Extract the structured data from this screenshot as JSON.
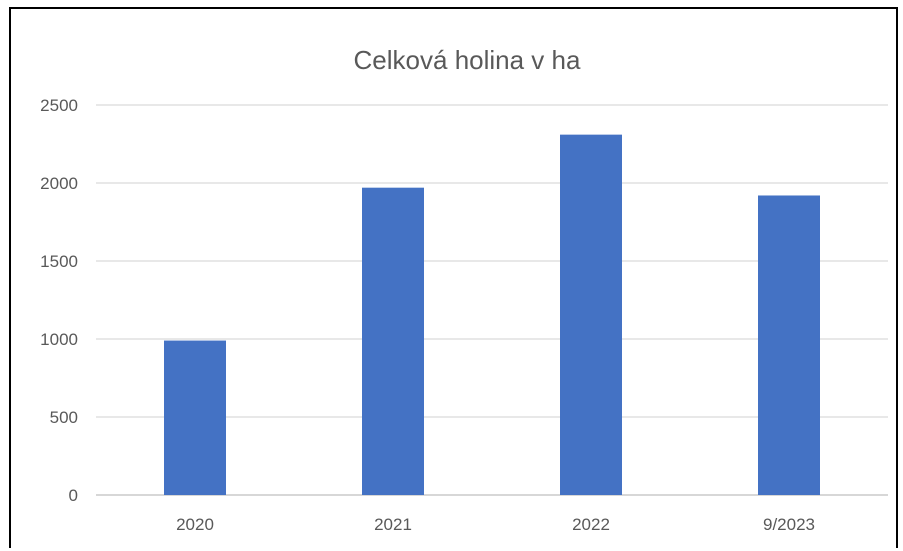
{
  "chart_data": {
    "type": "bar",
    "title": "Celková holina v ha",
    "xlabel": "",
    "ylabel": "",
    "categories": [
      "2020",
      "2021",
      "2022",
      "9/2023"
    ],
    "values": [
      990,
      1970,
      2310,
      1920
    ],
    "ylim": [
      0,
      2500
    ],
    "yticks": [
      "0",
      "500",
      "1000",
      "1500",
      "2000",
      "2500"
    ],
    "grid": true,
    "legend": "none",
    "colors": {
      "bar": "#4472C4",
      "grid": "#D9D9D9",
      "text": "#595959",
      "axis": "#BFBFBF"
    }
  }
}
